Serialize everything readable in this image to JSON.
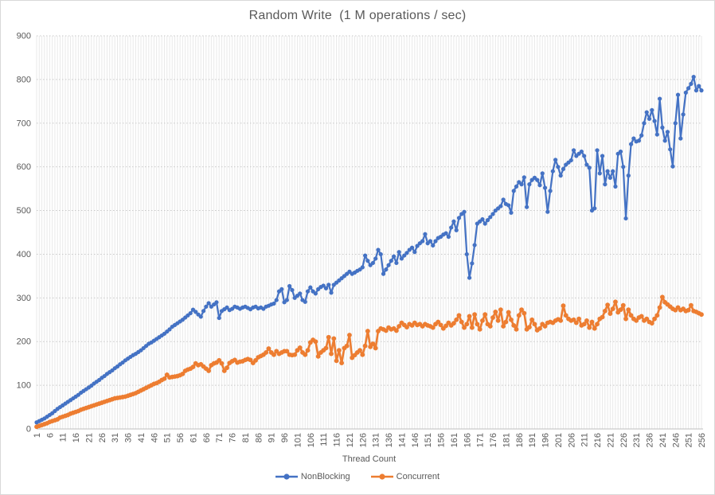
{
  "window": {
    "background": "#ffffff",
    "border_color": "#d9d9d9",
    "text_color": "#595959",
    "gridline_color": "#c9c9c9",
    "stripe_color": "#e9e9e9",
    "axis_line_color": "#bfbfbf"
  },
  "chart_data": {
    "type": "line",
    "title": "Random Write  (1 M operations / sec)",
    "xlabel": "Thread Count",
    "ylabel": "",
    "x_start": 1,
    "x_step": 1,
    "x_count": 256,
    "x_tick_labels": [
      1,
      6,
      11,
      16,
      21,
      26,
      31,
      36,
      41,
      46,
      51,
      56,
      61,
      66,
      71,
      76,
      81,
      86,
      91,
      96,
      101,
      106,
      111,
      116,
      121,
      126,
      131,
      136,
      141,
      146,
      151,
      156,
      161,
      166,
      171,
      176,
      181,
      186,
      191,
      196,
      201,
      206,
      211,
      216,
      221,
      226,
      231,
      236,
      241,
      246,
      251,
      256
    ],
    "y_ticks": [
      0,
      100,
      200,
      300,
      400,
      500,
      600,
      700,
      800,
      900
    ],
    "ylim": [
      0,
      900
    ],
    "grid": {
      "horizontal": "dotted",
      "vertical": "per-category"
    },
    "legend_position": "bottom",
    "series": [
      {
        "name": "NonBlocking",
        "color": "#4472C4",
        "marker": "circle",
        "values": [
          15,
          18,
          21,
          24,
          28,
          32,
          36,
          41,
          46,
          50,
          54,
          58,
          62,
          66,
          70,
          74,
          78,
          83,
          87,
          91,
          95,
          99,
          104,
          108,
          112,
          117,
          121,
          126,
          130,
          134,
          139,
          143,
          148,
          152,
          157,
          161,
          165,
          169,
          172,
          176,
          180,
          185,
          190,
          195,
          198,
          202,
          206,
          210,
          214,
          218,
          223,
          228,
          234,
          238,
          242,
          246,
          250,
          255,
          260,
          265,
          273,
          268,
          262,
          257,
          270,
          280,
          288,
          280,
          285,
          290,
          254,
          270,
          274,
          278,
          272,
          275,
          280,
          278,
          275,
          278,
          280,
          277,
          274,
          278,
          280,
          276,
          278,
          275,
          280,
          282,
          285,
          287,
          295,
          315,
          320,
          290,
          295,
          327,
          318,
          300,
          305,
          310,
          295,
          291,
          315,
          324,
          315,
          310,
          320,
          325,
          328,
          322,
          330,
          312,
          330,
          335,
          340,
          345,
          350,
          355,
          360,
          355,
          358,
          362,
          365,
          370,
          397,
          385,
          375,
          380,
          390,
          410,
          400,
          355,
          365,
          375,
          385,
          395,
          380,
          405,
          390,
          397,
          403,
          410,
          415,
          405,
          419,
          425,
          430,
          446,
          425,
          430,
          420,
          430,
          437,
          440,
          445,
          448,
          440,
          461,
          475,
          455,
          483,
          492,
          497,
          400,
          346,
          379,
          421,
          470,
          475,
          480,
          470,
          478,
          485,
          492,
          500,
          505,
          510,
          525,
          515,
          512,
          495,
          545,
          555,
          565,
          560,
          576,
          508,
          560,
          570,
          575,
          570,
          558,
          585,
          552,
          497,
          545,
          590,
          616,
          600,
          580,
          595,
          605,
          610,
          615,
          638,
          625,
          630,
          635,
          625,
          605,
          598,
          500,
          505,
          638,
          585,
          625,
          560,
          590,
          575,
          590,
          555,
          630,
          635,
          600,
          482,
          580,
          652,
          665,
          658,
          660,
          672,
          700,
          725,
          710,
          730,
          705,
          674,
          756,
          690,
          660,
          680,
          640,
          601,
          700,
          765,
          665,
          720,
          770,
          780,
          790,
          806,
          775,
          785,
          775
        ]
      },
      {
        "name": "Concurrent",
        "color": "#ED7D31",
        "marker": "circle",
        "values": [
          5,
          7,
          9,
          11,
          13,
          16,
          18,
          20,
          22,
          26,
          28,
          30,
          32,
          35,
          37,
          39,
          41,
          44,
          46,
          48,
          50,
          52,
          54,
          56,
          58,
          60,
          62,
          64,
          66,
          68,
          70,
          71,
          72,
          73,
          74,
          76,
          78,
          80,
          82,
          85,
          88,
          91,
          94,
          97,
          100,
          103,
          105,
          108,
          112,
          115,
          124,
          118,
          119,
          120,
          121,
          123,
          126,
          133,
          136,
          138,
          142,
          150,
          146,
          148,
          143,
          138,
          133,
          146,
          150,
          152,
          157,
          150,
          133,
          140,
          151,
          155,
          158,
          152,
          154,
          155,
          158,
          160,
          158,
          151,
          157,
          164,
          167,
          170,
          175,
          184,
          175,
          170,
          178,
          172,
          175,
          178,
          178,
          170,
          169,
          170,
          180,
          186,
          175,
          170,
          180,
          198,
          204,
          200,
          166,
          175,
          180,
          185,
          210,
          172,
          207,
          156,
          180,
          151,
          185,
          190,
          215,
          163,
          169,
          175,
          180,
          170,
          190,
          224,
          188,
          195,
          185,
          224,
          230,
          228,
          225,
          232,
          228,
          230,
          225,
          235,
          243,
          238,
          233,
          240,
          237,
          243,
          238,
          240,
          235,
          240,
          237,
          235,
          232,
          240,
          245,
          238,
          230,
          236,
          243,
          237,
          242,
          250,
          260,
          245,
          232,
          240,
          258,
          232,
          262,
          240,
          228,
          248,
          262,
          240,
          235,
          255,
          268,
          248,
          273,
          235,
          245,
          267,
          250,
          237,
          228,
          260,
          273,
          265,
          228,
          233,
          250,
          240,
          226,
          230,
          240,
          235,
          243,
          245,
          243,
          248,
          251,
          248,
          282,
          260,
          252,
          248,
          250,
          243,
          252,
          237,
          240,
          248,
          232,
          245,
          230,
          240,
          252,
          256,
          270,
          284,
          264,
          275,
          291,
          267,
          273,
          283,
          252,
          273,
          260,
          252,
          248,
          255,
          258,
          248,
          252,
          245,
          242,
          252,
          260,
          278,
          302,
          290,
          285,
          280,
          275,
          272,
          278,
          272,
          275,
          270,
          272,
          283,
          270,
          268,
          265,
          262
        ]
      }
    ]
  }
}
